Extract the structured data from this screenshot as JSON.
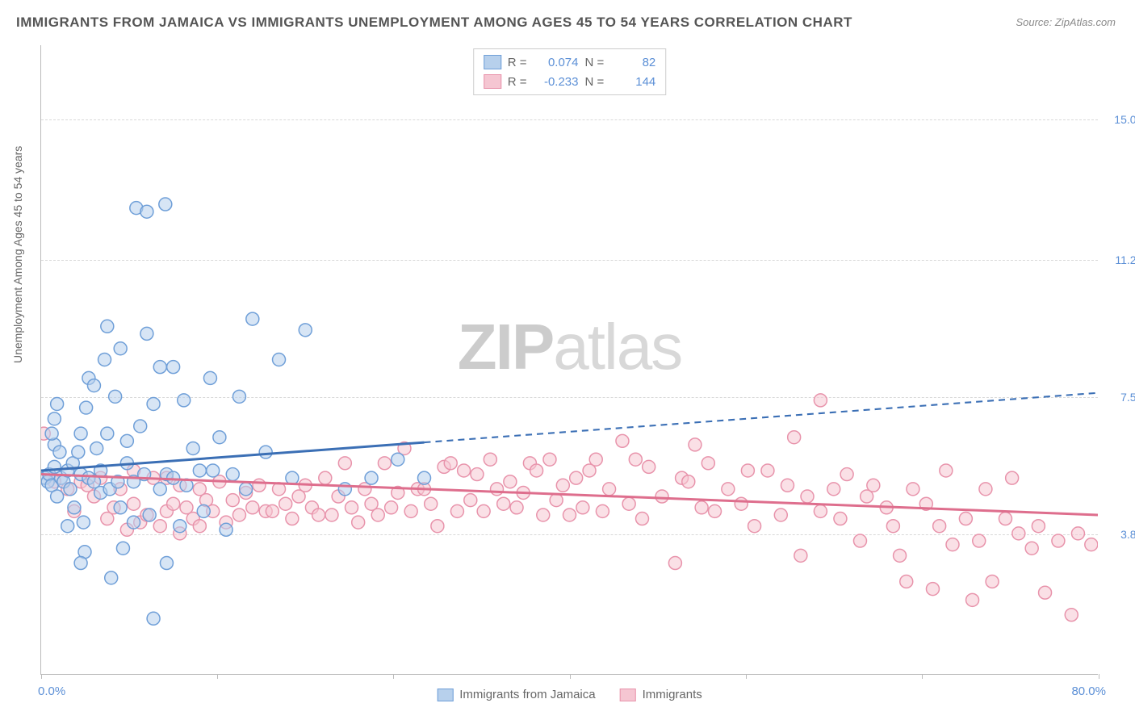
{
  "title": "IMMIGRANTS FROM JAMAICA VS IMMIGRANTS UNEMPLOYMENT AMONG AGES 45 TO 54 YEARS CORRELATION CHART",
  "source": "Source: ZipAtlas.com",
  "y_axis_label": "Unemployment Among Ages 45 to 54 years",
  "watermark_a": "ZIP",
  "watermark_b": "atlas",
  "chart": {
    "type": "scatter-with-regression",
    "background_color": "#ffffff",
    "grid_color": "#d8d8d8",
    "axis_color": "#bbbbbb",
    "label_color": "#5b8fd6",
    "text_color": "#666666",
    "x_range": [
      0,
      80
    ],
    "y_range": [
      0,
      17
    ],
    "y_ticks": [
      {
        "v": 3.8,
        "label": "3.8%"
      },
      {
        "v": 7.5,
        "label": "7.5%"
      },
      {
        "v": 11.2,
        "label": "11.2%"
      },
      {
        "v": 15.0,
        "label": "15.0%"
      }
    ],
    "x_start_label": "0.0%",
    "x_end_label": "80.0%",
    "x_tick_values": [
      0,
      13.3,
      26.6,
      40,
      53.3,
      66.6,
      80
    ],
    "marker_radius": 8,
    "marker_opacity": 0.55,
    "line_width": 3,
    "series": [
      {
        "name": "Immigrants from Jamaica",
        "color_fill": "#b7d0ec",
        "color_stroke": "#6f9fd8",
        "color_line": "#3b6fb5",
        "R": "0.074",
        "N": "82",
        "data_x_max": 29,
        "regression": {
          "x1": 0,
          "y1": 5.5,
          "x2": 80,
          "y2": 7.6
        },
        "points": [
          [
            0.3,
            5.3
          ],
          [
            0.5,
            5.2
          ],
          [
            0.6,
            5.4
          ],
          [
            0.8,
            5.1
          ],
          [
            1.0,
            5.6
          ],
          [
            1.2,
            4.8
          ],
          [
            1.0,
            6.2
          ],
          [
            1.5,
            5.3
          ],
          [
            1.4,
            6.0
          ],
          [
            1.0,
            6.9
          ],
          [
            1.2,
            7.3
          ],
          [
            0.8,
            6.5
          ],
          [
            1.7,
            5.2
          ],
          [
            2.0,
            5.5
          ],
          [
            2.2,
            5.0
          ],
          [
            2.0,
            4.0
          ],
          [
            2.5,
            4.5
          ],
          [
            2.4,
            5.7
          ],
          [
            2.8,
            6.0
          ],
          [
            3.0,
            5.4
          ],
          [
            3.0,
            6.5
          ],
          [
            3.2,
            4.1
          ],
          [
            3.3,
            3.3
          ],
          [
            3.0,
            3.0
          ],
          [
            3.6,
            5.3
          ],
          [
            3.4,
            7.2
          ],
          [
            3.6,
            8.0
          ],
          [
            4.0,
            5.2
          ],
          [
            4.0,
            7.8
          ],
          [
            4.2,
            6.1
          ],
          [
            4.5,
            4.9
          ],
          [
            4.5,
            5.5
          ],
          [
            4.8,
            8.5
          ],
          [
            5.0,
            9.4
          ],
          [
            5.0,
            6.5
          ],
          [
            5.3,
            2.6
          ],
          [
            5.2,
            5.0
          ],
          [
            5.6,
            7.5
          ],
          [
            5.8,
            5.2
          ],
          [
            6.0,
            4.5
          ],
          [
            6.0,
            8.8
          ],
          [
            6.2,
            3.4
          ],
          [
            6.5,
            5.7
          ],
          [
            6.5,
            6.3
          ],
          [
            7.0,
            4.1
          ],
          [
            7.0,
            5.2
          ],
          [
            7.2,
            12.6
          ],
          [
            7.5,
            6.7
          ],
          [
            7.8,
            5.4
          ],
          [
            8.0,
            12.5
          ],
          [
            8.0,
            9.2
          ],
          [
            8.2,
            4.3
          ],
          [
            8.5,
            7.3
          ],
          [
            8.5,
            1.5
          ],
          [
            9.0,
            5.0
          ],
          [
            9.0,
            8.3
          ],
          [
            9.4,
            12.7
          ],
          [
            9.5,
            5.4
          ],
          [
            9.5,
            3.0
          ],
          [
            10.0,
            5.3
          ],
          [
            10.0,
            8.3
          ],
          [
            10.5,
            4.0
          ],
          [
            10.8,
            7.4
          ],
          [
            11.0,
            5.1
          ],
          [
            11.5,
            6.1
          ],
          [
            12.0,
            5.5
          ],
          [
            12.3,
            4.4
          ],
          [
            12.8,
            8.0
          ],
          [
            13.0,
            5.5
          ],
          [
            13.5,
            6.4
          ],
          [
            14.0,
            3.9
          ],
          [
            14.5,
            5.4
          ],
          [
            15.0,
            7.5
          ],
          [
            15.5,
            5.0
          ],
          [
            16.0,
            9.6
          ],
          [
            17.0,
            6.0
          ],
          [
            18.0,
            8.5
          ],
          [
            19.0,
            5.3
          ],
          [
            20.0,
            9.3
          ],
          [
            23.0,
            5.0
          ],
          [
            25.0,
            5.3
          ],
          [
            27.0,
            5.8
          ],
          [
            29.0,
            5.3
          ]
        ]
      },
      {
        "name": "Immigrants",
        "color_fill": "#f5c6d2",
        "color_stroke": "#e893ab",
        "color_line": "#de6e8d",
        "R": "-0.233",
        "N": "144",
        "data_x_max": 80,
        "regression": {
          "x1": 0,
          "y1": 5.4,
          "x2": 80,
          "y2": 4.3
        },
        "points": [
          [
            0.2,
            6.5
          ],
          [
            1.0,
            5.2
          ],
          [
            2.0,
            5.0
          ],
          [
            2.5,
            4.4
          ],
          [
            3.0,
            5.2
          ],
          [
            3.5,
            5.1
          ],
          [
            4.0,
            4.8
          ],
          [
            4.5,
            5.3
          ],
          [
            5.0,
            4.2
          ],
          [
            5.5,
            4.5
          ],
          [
            6.0,
            5.0
          ],
          [
            6.5,
            3.9
          ],
          [
            7.0,
            4.6
          ],
          [
            7.0,
            5.5
          ],
          [
            7.5,
            4.1
          ],
          [
            8.0,
            4.3
          ],
          [
            8.5,
            5.3
          ],
          [
            9.0,
            4.0
          ],
          [
            9.5,
            4.4
          ],
          [
            9.5,
            5.3
          ],
          [
            10.0,
            4.6
          ],
          [
            10.5,
            5.1
          ],
          [
            10.5,
            3.8
          ],
          [
            11.0,
            4.5
          ],
          [
            11.5,
            4.2
          ],
          [
            12.0,
            5.0
          ],
          [
            12.0,
            4.0
          ],
          [
            12.5,
            4.7
          ],
          [
            13.0,
            4.4
          ],
          [
            13.5,
            5.2
          ],
          [
            14.0,
            4.1
          ],
          [
            14.5,
            4.7
          ],
          [
            15.0,
            4.3
          ],
          [
            15.5,
            4.9
          ],
          [
            16.0,
            4.5
          ],
          [
            16.5,
            5.1
          ],
          [
            17.0,
            4.4
          ],
          [
            17.5,
            4.4
          ],
          [
            18.0,
            5.0
          ],
          [
            18.5,
            4.6
          ],
          [
            19.0,
            4.2
          ],
          [
            19.5,
            4.8
          ],
          [
            20.0,
            5.1
          ],
          [
            20.5,
            4.5
          ],
          [
            21.0,
            4.3
          ],
          [
            21.5,
            5.3
          ],
          [
            22.0,
            4.3
          ],
          [
            22.5,
            4.8
          ],
          [
            23.0,
            5.7
          ],
          [
            23.5,
            4.5
          ],
          [
            24.0,
            4.1
          ],
          [
            24.5,
            5.0
          ],
          [
            25.0,
            4.6
          ],
          [
            25.5,
            4.3
          ],
          [
            26.0,
            5.7
          ],
          [
            26.5,
            4.5
          ],
          [
            27.0,
            4.9
          ],
          [
            27.5,
            6.1
          ],
          [
            28.0,
            4.4
          ],
          [
            28.5,
            5.0
          ],
          [
            29.0,
            5.0
          ],
          [
            29.5,
            4.6
          ],
          [
            30.0,
            4.0
          ],
          [
            30.5,
            5.6
          ],
          [
            31.0,
            5.7
          ],
          [
            31.5,
            4.4
          ],
          [
            32.0,
            5.5
          ],
          [
            32.5,
            4.7
          ],
          [
            33.0,
            5.4
          ],
          [
            33.5,
            4.4
          ],
          [
            34.0,
            5.8
          ],
          [
            34.5,
            5.0
          ],
          [
            35.0,
            4.6
          ],
          [
            35.5,
            5.2
          ],
          [
            36.0,
            4.5
          ],
          [
            36.5,
            4.9
          ],
          [
            37.0,
            5.7
          ],
          [
            37.5,
            5.5
          ],
          [
            38.0,
            4.3
          ],
          [
            38.5,
            5.8
          ],
          [
            39.0,
            4.7
          ],
          [
            39.5,
            5.1
          ],
          [
            40.0,
            4.3
          ],
          [
            40.5,
            5.3
          ],
          [
            41.0,
            4.5
          ],
          [
            41.5,
            5.5
          ],
          [
            42.0,
            5.8
          ],
          [
            42.5,
            4.4
          ],
          [
            43.0,
            5.0
          ],
          [
            44.0,
            6.3
          ],
          [
            44.5,
            4.6
          ],
          [
            45.0,
            5.8
          ],
          [
            45.5,
            4.2
          ],
          [
            46.0,
            5.6
          ],
          [
            47.0,
            4.8
          ],
          [
            48.0,
            3.0
          ],
          [
            48.5,
            5.3
          ],
          [
            49.0,
            5.2
          ],
          [
            49.5,
            6.2
          ],
          [
            50.0,
            4.5
          ],
          [
            50.5,
            5.7
          ],
          [
            51.0,
            4.4
          ],
          [
            52.0,
            5.0
          ],
          [
            53.0,
            4.6
          ],
          [
            53.5,
            5.5
          ],
          [
            54.0,
            4.0
          ],
          [
            55.0,
            5.5
          ],
          [
            56.0,
            4.3
          ],
          [
            56.5,
            5.1
          ],
          [
            57.0,
            6.4
          ],
          [
            57.5,
            3.2
          ],
          [
            58.0,
            4.8
          ],
          [
            59.0,
            7.4
          ],
          [
            59.0,
            4.4
          ],
          [
            60.0,
            5.0
          ],
          [
            60.5,
            4.2
          ],
          [
            61.0,
            5.4
          ],
          [
            62.0,
            3.6
          ],
          [
            62.5,
            4.8
          ],
          [
            63.0,
            5.1
          ],
          [
            64.0,
            4.5
          ],
          [
            64.5,
            4.0
          ],
          [
            65.0,
            3.2
          ],
          [
            65.5,
            2.5
          ],
          [
            66.0,
            5.0
          ],
          [
            67.0,
            4.6
          ],
          [
            67.5,
            2.3
          ],
          [
            68.0,
            4.0
          ],
          [
            68.5,
            5.5
          ],
          [
            69.0,
            3.5
          ],
          [
            70.0,
            4.2
          ],
          [
            70.5,
            2.0
          ],
          [
            71.0,
            3.6
          ],
          [
            71.5,
            5.0
          ],
          [
            72.0,
            2.5
          ],
          [
            73.0,
            4.2
          ],
          [
            73.5,
            5.3
          ],
          [
            74.0,
            3.8
          ],
          [
            75.0,
            3.4
          ],
          [
            75.5,
            4.0
          ],
          [
            76.0,
            2.2
          ],
          [
            77.0,
            3.6
          ],
          [
            78.0,
            1.6
          ],
          [
            78.5,
            3.8
          ],
          [
            79.5,
            3.5
          ]
        ]
      }
    ]
  },
  "legend_bottom": [
    {
      "label": "Immigrants from Jamaica",
      "fill": "#b7d0ec",
      "stroke": "#6f9fd8"
    },
    {
      "label": "Immigrants",
      "fill": "#f5c6d2",
      "stroke": "#e893ab"
    }
  ]
}
